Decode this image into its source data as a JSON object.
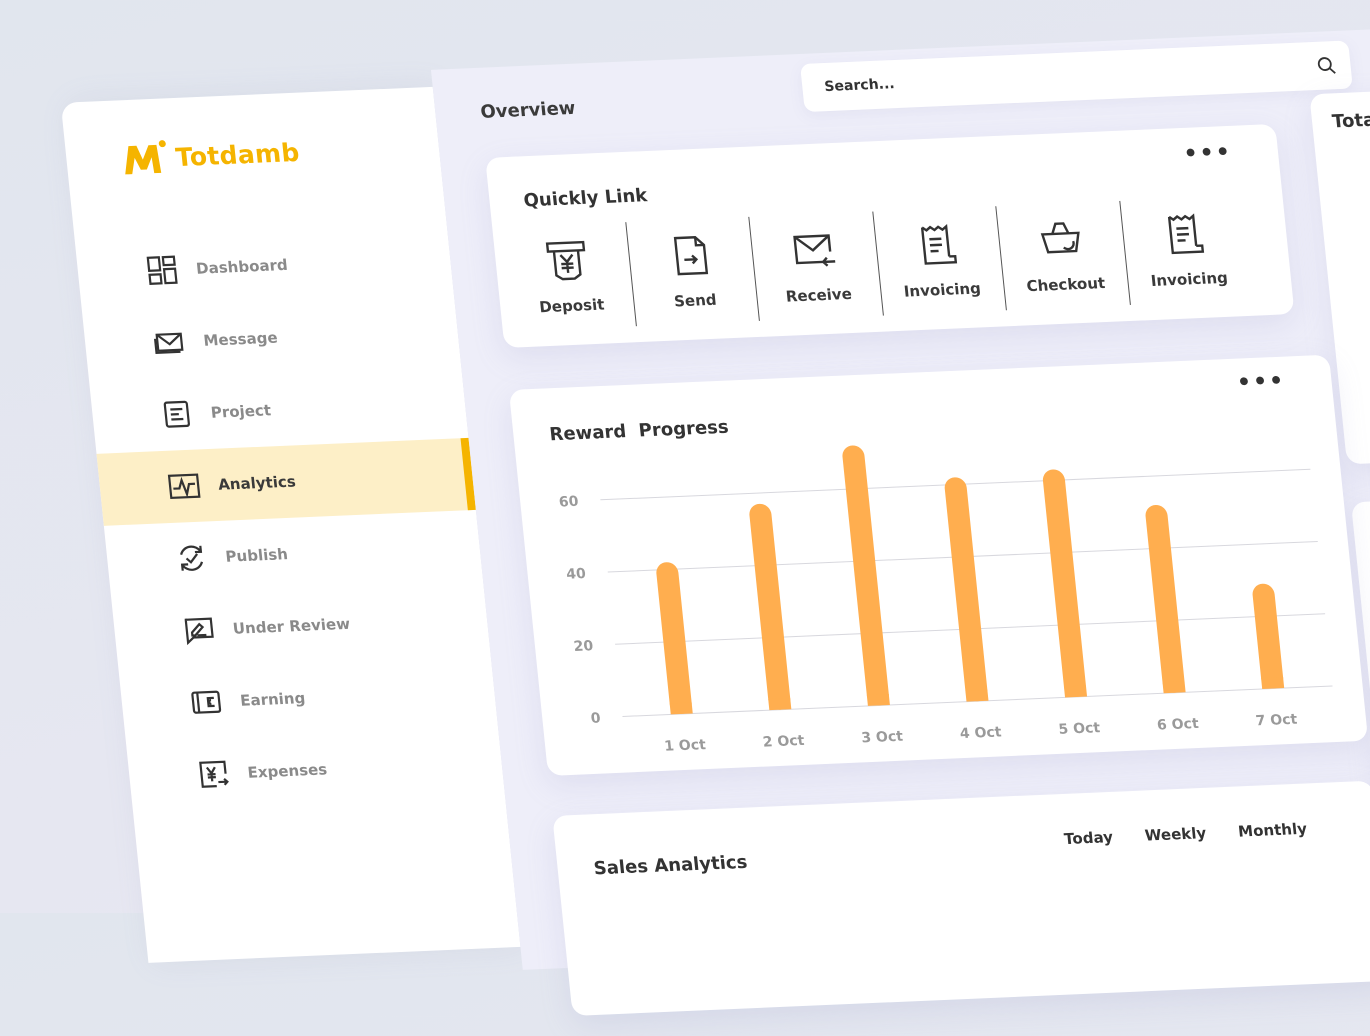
{
  "app": {
    "name": "Totdamb"
  },
  "colors": {
    "brand": "#f5b400",
    "bar": "#ffae4f",
    "active_bg": "#fdefc7"
  },
  "sidebar": {
    "items": [
      {
        "label": "Dashboard",
        "icon": "dashboard-icon"
      },
      {
        "label": "Message",
        "icon": "mail-icon"
      },
      {
        "label": "Project",
        "icon": "document-icon"
      },
      {
        "label": "Analytics",
        "icon": "analytics-icon",
        "active": true
      },
      {
        "label": "Publish",
        "icon": "sync-check-icon"
      },
      {
        "label": "Under Review",
        "icon": "review-icon"
      },
      {
        "label": "Earning",
        "icon": "wallet-icon"
      },
      {
        "label": "Expenses",
        "icon": "yen-transfer-icon"
      }
    ]
  },
  "header": {
    "title": "Overview"
  },
  "search": {
    "placeholder": "Search..."
  },
  "quick_link": {
    "title": "Quickly Link",
    "items": [
      {
        "label": "Deposit",
        "icon": "deposit-icon"
      },
      {
        "label": "Send",
        "icon": "send-file-icon"
      },
      {
        "label": "Receive",
        "icon": "receive-mail-icon"
      },
      {
        "label": "Invoicing",
        "icon": "invoice-icon"
      },
      {
        "label": "Checkout",
        "icon": "basket-icon"
      },
      {
        "label": "Invoicing",
        "icon": "invoice-icon"
      }
    ]
  },
  "side_panel": {
    "title": "Total R"
  },
  "reward_progress": {
    "title": "Reward  Progress"
  },
  "chart_data": {
    "type": "bar",
    "title": "Reward  Progress",
    "categories": [
      "1 Oct",
      "2 Oct",
      "3 Oct",
      "4 Oct",
      "5 Oct",
      "6 Oct",
      "7 Oct"
    ],
    "values": [
      42,
      57,
      72,
      62,
      63,
      52,
      29
    ],
    "yticks": [
      0,
      20,
      40,
      60
    ],
    "ylim": [
      0,
      72
    ],
    "grid": true,
    "xlabel": "",
    "ylabel": ""
  },
  "sales_analytics": {
    "title": "Sales Analytics",
    "tabs": [
      "Today",
      "Weekly",
      "Monthly"
    ]
  }
}
